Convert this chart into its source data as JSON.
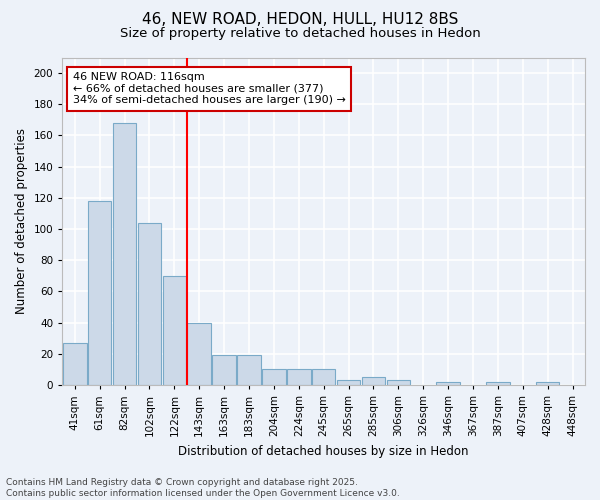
{
  "title": "46, NEW ROAD, HEDON, HULL, HU12 8BS",
  "subtitle": "Size of property relative to detached houses in Hedon",
  "xlabel": "Distribution of detached houses by size in Hedon",
  "ylabel": "Number of detached properties",
  "categories": [
    "41sqm",
    "61sqm",
    "82sqm",
    "102sqm",
    "122sqm",
    "143sqm",
    "163sqm",
    "183sqm",
    "204sqm",
    "224sqm",
    "245sqm",
    "265sqm",
    "285sqm",
    "306sqm",
    "326sqm",
    "346sqm",
    "367sqm",
    "387sqm",
    "407sqm",
    "428sqm",
    "448sqm"
  ],
  "values": [
    27,
    118,
    168,
    104,
    70,
    40,
    19,
    19,
    10,
    10,
    10,
    3,
    5,
    3,
    0,
    2,
    0,
    2,
    0,
    2,
    0
  ],
  "bar_color": "#ccd9e8",
  "bar_edge_color": "#7aaac8",
  "red_line_x": 4.5,
  "annotation_line1": "46 NEW ROAD: 116sqm",
  "annotation_line2": "← 66% of detached houses are smaller (377)",
  "annotation_line3": "34% of semi-detached houses are larger (190) →",
  "annotation_box_facecolor": "#ffffff",
  "annotation_box_edgecolor": "#cc0000",
  "ylim": [
    0,
    210
  ],
  "yticks": [
    0,
    20,
    40,
    60,
    80,
    100,
    120,
    140,
    160,
    180,
    200
  ],
  "footer_line1": "Contains HM Land Registry data © Crown copyright and database right 2025.",
  "footer_line2": "Contains public sector information licensed under the Open Government Licence v3.0.",
  "background_color": "#edf2f9",
  "grid_color": "#ffffff",
  "title_fontsize": 11,
  "subtitle_fontsize": 9.5,
  "axis_label_fontsize": 8.5,
  "tick_fontsize": 7.5,
  "annotation_fontsize": 8,
  "footer_fontsize": 6.5
}
